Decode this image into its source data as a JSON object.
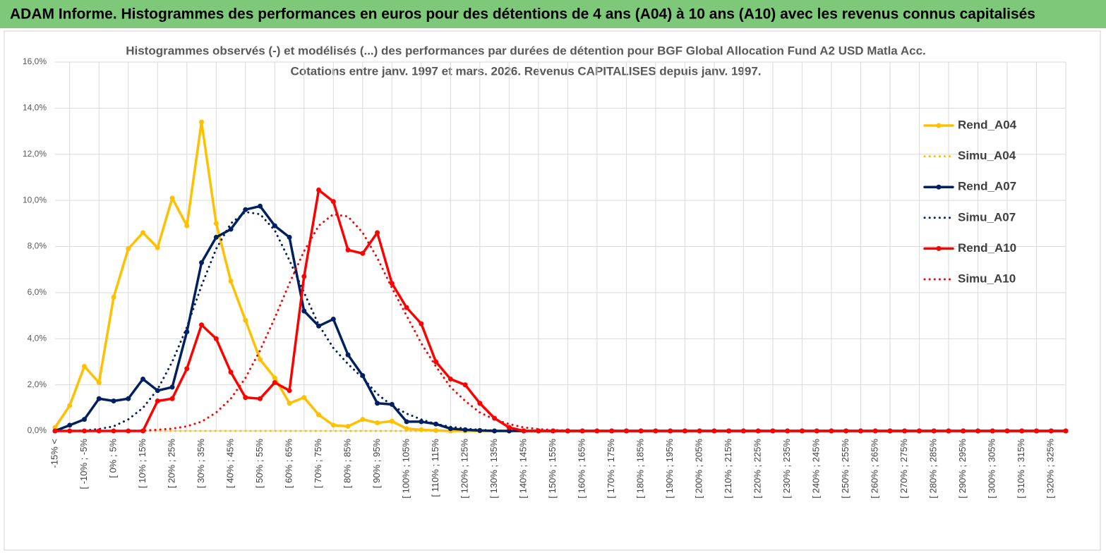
{
  "header": {
    "title": "ADAM Informe. Histogrammes des performances en euros pour des détentions de 4 ans (A04) à 10 ans (A10) avec les revenus connus capitalisés"
  },
  "chart_data": {
    "type": "line",
    "title": "Histogrammes observés (-) et modélisés (...) des performances par durées de détention pour BGF Global Allocation Fund A2 USD Matla Acc.",
    "subtitle": "Cotations entre janv. 1997 et mars. 2026. Revenus CAPITALISES depuis janv. 1997.",
    "categories": [
      "-15% <",
      null,
      "[ -10% ; -5%",
      null,
      "[ 0% ; 5%",
      null,
      "[ 10% ; 15%",
      null,
      "[ 20% ; 25%",
      null,
      "[ 30% ; 35%",
      null,
      "[ 40% ; 45%",
      null,
      "[ 50% ; 55%",
      null,
      "[ 60% ; 65%",
      null,
      "[ 70% ; 75%",
      null,
      "[ 80% ; 85%",
      null,
      "[ 90% ; 95%",
      null,
      "[ 100% ; 105%",
      null,
      "[ 110% ; 115%",
      null,
      "[ 120% ; 125%",
      null,
      "[ 130% ; 135%",
      null,
      "[ 140% ; 145%",
      null,
      "[ 150% ; 155%",
      null,
      "[ 160% ; 165%",
      null,
      "[ 170% ; 175%",
      null,
      "[ 180% ; 185%",
      null,
      "[ 190% ; 195%",
      null,
      "[ 200% ; 205%",
      null,
      "[ 210% ; 215%",
      null,
      "[ 220% ; 225%",
      null,
      "[ 230% ; 235%",
      null,
      "[ 240% ; 245%",
      null,
      "[ 250% ; 255%",
      null,
      "[ 260% ; 265%",
      null,
      "[ 270% ; 275%",
      null,
      "[ 280% ; 285%",
      null,
      "[ 290% ; 295%",
      null,
      "[ 300% ; 305%",
      null,
      "[ 310% ; 315%",
      null,
      "[ 320% ; 325%",
      null
    ],
    "ylim": [
      0,
      16
    ],
    "yticks": [
      {
        "value": 0,
        "label": "0,0%"
      },
      {
        "value": 2,
        "label": "2,0%"
      },
      {
        "value": 4,
        "label": "4,0%"
      },
      {
        "value": 6,
        "label": "6,0%"
      },
      {
        "value": 8,
        "label": "8,0%"
      },
      {
        "value": 10,
        "label": "10,0%"
      },
      {
        "value": 12,
        "label": "12,0%"
      },
      {
        "value": 14,
        "label": "14,0%"
      },
      {
        "value": 16,
        "label": "16,0%"
      }
    ],
    "grid": true,
    "legend": "right",
    "series": [
      {
        "name": "Rend_A04",
        "color": "#ffc000",
        "style": "solid",
        "markers": true,
        "values": [
          0.15,
          1.1,
          2.8,
          2.1,
          5.8,
          7.9,
          8.6,
          7.95,
          10.1,
          8.9,
          13.4,
          9.0,
          6.5,
          4.8,
          3.1,
          2.3,
          1.2,
          1.45,
          0.7,
          0.25,
          0.2,
          0.5,
          0.35,
          0.42,
          0.1,
          0.05,
          0.02,
          0,
          0,
          0,
          0,
          0,
          0,
          0,
          0,
          0,
          0,
          0,
          0,
          0,
          0,
          0,
          0,
          0,
          0,
          0,
          0,
          0,
          0,
          0,
          0,
          0,
          0,
          0,
          0,
          0,
          0,
          0,
          0,
          0,
          0,
          0,
          0,
          0,
          0,
          0,
          0,
          0,
          0,
          0
        ]
      },
      {
        "name": "Simu_A04",
        "color": "#ffc000",
        "style": "dotted",
        "markers": false,
        "values": [
          0,
          0,
          0,
          0,
          0,
          0,
          0,
          0,
          0,
          0,
          0,
          0,
          0,
          0,
          0,
          0,
          0,
          0,
          0,
          0,
          0,
          0,
          0,
          0,
          0,
          0,
          0,
          0,
          0,
          0,
          0,
          0,
          0,
          0,
          0,
          0,
          0,
          0,
          0,
          0,
          0,
          0,
          0,
          0,
          0,
          0,
          0,
          0,
          0,
          0,
          0,
          0,
          0,
          0,
          0,
          0,
          0,
          0,
          0,
          0,
          0,
          0,
          0,
          0,
          0,
          0,
          0,
          0,
          0,
          0
        ]
      },
      {
        "name": "Rend_A07",
        "color": "#002060",
        "style": "solid",
        "markers": true,
        "values": [
          0,
          0.25,
          0.5,
          1.4,
          1.3,
          1.4,
          2.25,
          1.75,
          1.9,
          4.3,
          7.3,
          8.4,
          8.75,
          9.6,
          9.75,
          8.9,
          8.4,
          5.2,
          4.55,
          4.85,
          3.3,
          2.4,
          1.2,
          1.15,
          0.4,
          0.4,
          0.3,
          0.1,
          0.05,
          0.02,
          0,
          0,
          0,
          0,
          0,
          0,
          0,
          0,
          0,
          0,
          0,
          0,
          0,
          0,
          0,
          0,
          0,
          0,
          0,
          0,
          0,
          0,
          0,
          0,
          0,
          0,
          0,
          0,
          0,
          0,
          0,
          0,
          0,
          0,
          0,
          0,
          0,
          0,
          0,
          0
        ]
      },
      {
        "name": "Simu_A07",
        "color": "#002060",
        "style": "dotted",
        "markers": false,
        "values": [
          0,
          0,
          0.02,
          0.08,
          0.2,
          0.5,
          1.0,
          1.8,
          3.0,
          4.5,
          6.3,
          7.9,
          9.0,
          9.5,
          9.4,
          8.7,
          7.4,
          6.0,
          4.6,
          3.6,
          2.9,
          2.3,
          1.6,
          1.1,
          0.75,
          0.5,
          0.3,
          0.18,
          0.1,
          0.05,
          0.02,
          0,
          0,
          0,
          0,
          0,
          0,
          0,
          0,
          0,
          0,
          0,
          0,
          0,
          0,
          0,
          0,
          0,
          0,
          0,
          0,
          0,
          0,
          0,
          0,
          0,
          0,
          0,
          0,
          0,
          0,
          0,
          0,
          0,
          0,
          0,
          0,
          0,
          0,
          0
        ]
      },
      {
        "name": "Rend_A10",
        "color": "#ff0000",
        "style": "solid",
        "markers": true,
        "values": [
          0,
          0,
          0,
          0,
          0,
          0,
          0,
          1.3,
          1.4,
          2.7,
          4.6,
          4.0,
          2.55,
          1.45,
          1.4,
          2.1,
          1.75,
          6.7,
          10.45,
          9.95,
          7.85,
          7.7,
          8.6,
          6.4,
          5.35,
          4.65,
          3.0,
          2.25,
          2.0,
          1.2,
          0.55,
          0.15,
          0,
          0,
          0,
          0,
          0,
          0,
          0,
          0,
          0,
          0,
          0,
          0,
          0,
          0,
          0,
          0,
          0,
          0,
          0,
          0,
          0,
          0,
          0,
          0,
          0,
          0,
          0,
          0,
          0,
          0,
          0,
          0,
          0,
          0,
          0,
          0,
          0,
          0
        ]
      },
      {
        "name": "Simu_A10",
        "color": "#ff0000",
        "style": "dotted",
        "markers": false,
        "values": [
          0,
          0,
          0,
          0,
          0,
          0,
          0.02,
          0.05,
          0.1,
          0.2,
          0.4,
          0.8,
          1.4,
          2.3,
          3.5,
          4.9,
          6.4,
          7.8,
          8.9,
          9.4,
          9.3,
          8.6,
          7.5,
          6.2,
          5.0,
          3.8,
          2.8,
          1.9,
          1.3,
          0.8,
          0.5,
          0.3,
          0.15,
          0.08,
          0.04,
          0.02,
          0,
          0,
          0,
          0,
          0,
          0,
          0,
          0,
          0,
          0,
          0,
          0,
          0,
          0,
          0,
          0,
          0,
          0,
          0,
          0,
          0,
          0,
          0,
          0,
          0,
          0,
          0,
          0,
          0,
          0,
          0,
          0,
          0,
          0
        ]
      }
    ]
  }
}
